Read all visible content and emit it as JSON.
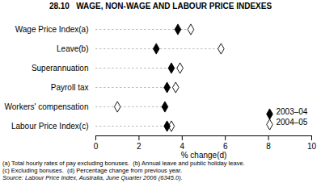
{
  "chart_data": {
    "type": "dot",
    "title": "28.10   WAGE, NON-WAGE AND LABOUR PRICE INDEXES",
    "categories": [
      "Wage Price Index(a)",
      "Leave(b)",
      "Superannuation",
      "Payroll tax",
      "Workers' compensation",
      "Labour Price Index(c)"
    ],
    "series": [
      {
        "name": "2003–04",
        "color": "#000000",
        "marker": "diamond",
        "values": [
          3.8,
          2.8,
          3.5,
          3.3,
          3.2,
          3.3
        ]
      },
      {
        "name": "2004–05",
        "color": "#000000",
        "marker": "open_diamond",
        "values": [
          4.4,
          5.8,
          3.9,
          3.7,
          1.0,
          3.5
        ]
      }
    ],
    "xlabel": "% change(d)",
    "xlim": [
      0,
      10
    ],
    "xticks": [
      0,
      2,
      4,
      6,
      8,
      10
    ],
    "grid": false,
    "legend": "lower right",
    "annotations": [
      "(a) Total hourly rates of pay excluding bonuses.  (b) Annual leave and public holiday leave.",
      "(c) Excluding bonuses.  (d) Percentage change from previous year.",
      "Source: Labour Price Index, Australia, June Quarter 2006 (6345.0)."
    ]
  }
}
